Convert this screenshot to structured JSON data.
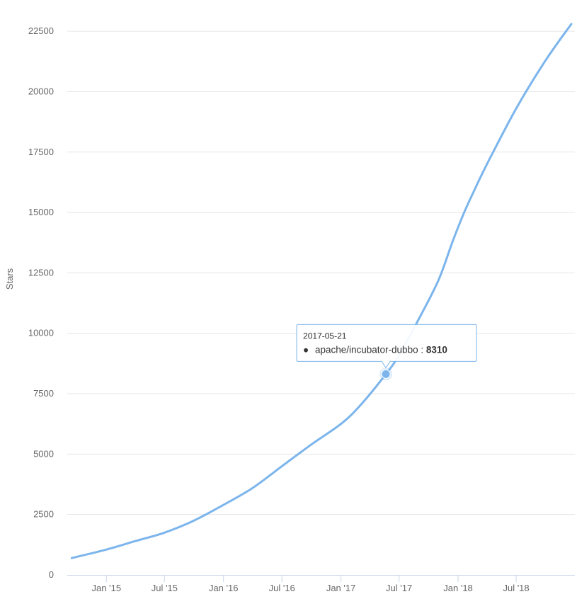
{
  "chart_data": {
    "type": "line",
    "title": "",
    "xlabel": "",
    "ylabel": "Stars",
    "x_ticks": [
      "Jan '15",
      "Jul '15",
      "Jan '16",
      "Jul '16",
      "Jan '17",
      "Jul '17",
      "Jan '18",
      "Jul '18"
    ],
    "y_ticks": [
      0,
      2500,
      5000,
      7500,
      10000,
      12500,
      15000,
      17500,
      20000,
      22500
    ],
    "ylim": [
      0,
      23500
    ],
    "xlim": [
      "2014-09-01",
      "2018-12-31"
    ],
    "grid": true,
    "legend": "none",
    "colors": {
      "line": "#7cb5ec",
      "grid": "#e6e6e6",
      "tick_text": "#666666",
      "axis_line": "#ccd6eb"
    },
    "series": [
      {
        "values": [
          {
            "x": "2014-09-15",
            "y": 700
          },
          {
            "x": "2015-01-01",
            "y": 1050
          },
          {
            "x": "2015-04-01",
            "y": 1400
          },
          {
            "x": "2015-07-01",
            "y": 1750
          },
          {
            "x": "2015-10-01",
            "y": 2250
          },
          {
            "x": "2016-01-01",
            "y": 2900
          },
          {
            "x": "2016-04-01",
            "y": 3600
          },
          {
            "x": "2016-07-01",
            "y": 4500
          },
          {
            "x": "2016-10-01",
            "y": 5400
          },
          {
            "x": "2017-01-01",
            "y": 6250
          },
          {
            "x": "2017-03-01",
            "y": 7000
          },
          {
            "x": "2017-05-21",
            "y": 8310
          },
          {
            "x": "2017-07-01",
            "y": 9100
          },
          {
            "x": "2017-09-01",
            "y": 10600
          },
          {
            "x": "2017-11-01",
            "y": 12200
          },
          {
            "x": "2017-12-15",
            "y": 13800
          },
          {
            "x": "2018-01-20",
            "y": 15000
          },
          {
            "x": "2018-02-20",
            "y": 15900
          },
          {
            "x": "2018-04-01",
            "y": 17000
          },
          {
            "x": "2018-07-01",
            "y": 19300
          },
          {
            "x": "2018-10-01",
            "y": 21300
          },
          {
            "x": "2018-12-20",
            "y": 22800
          }
        ]
      }
    ],
    "tooltip": {
      "date": "2017-05-21",
      "series_name": "apache/incubator-dubbo",
      "separator": ": ",
      "bullet": "●",
      "value": "8310",
      "x": "2017-05-21",
      "y": 8310
    }
  }
}
